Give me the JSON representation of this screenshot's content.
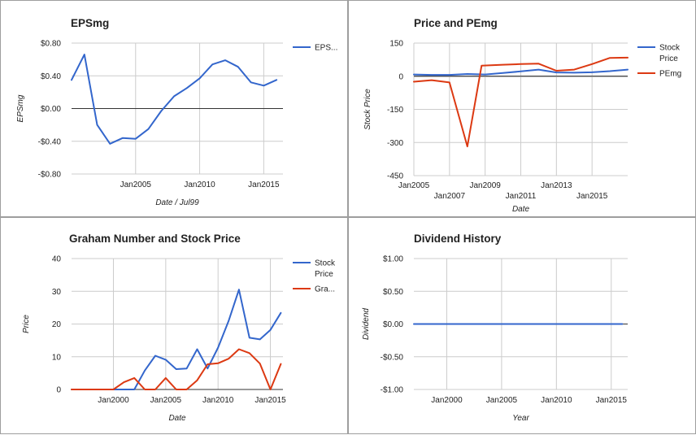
{
  "chart_data": [
    {
      "type": "line",
      "title": "EPSmg",
      "xlabel": "Date / Jul99",
      "ylabel": "EPSmg",
      "ylim": [
        -0.8,
        0.8
      ],
      "y_ticks": [
        "$0.80",
        "$0.40",
        "$0.00",
        "-$0.40",
        "-$0.80"
      ],
      "x_ticks": [
        "Jan2005",
        "Jan2010",
        "Jan2015"
      ],
      "legend": "right",
      "grid": true,
      "series": [
        {
          "name": "EPS...",
          "color": "#3366cc",
          "points": [
            [
              2000.0,
              0.35
            ],
            [
              2001.0,
              0.66
            ],
            [
              2002.0,
              -0.2
            ],
            [
              2003.0,
              -0.43
            ],
            [
              2004.0,
              -0.36
            ],
            [
              2005.0,
              -0.37
            ],
            [
              2006.0,
              -0.25
            ],
            [
              2007.0,
              -0.03
            ],
            [
              2008.0,
              0.15
            ],
            [
              2009.0,
              0.25
            ],
            [
              2010.0,
              0.37
            ],
            [
              2011.0,
              0.54
            ],
            [
              2012.0,
              0.59
            ],
            [
              2013.0,
              0.51
            ],
            [
              2014.0,
              0.32
            ],
            [
              2015.0,
              0.28
            ],
            [
              2016.0,
              0.35
            ]
          ]
        }
      ]
    },
    {
      "type": "line",
      "title": "Price and PEmg",
      "xlabel": "Date",
      "ylabel": "Stock Price",
      "ylim": [
        -450,
        150
      ],
      "y_ticks": [
        "150",
        "0",
        "-150",
        "-300",
        "-450"
      ],
      "x_ticks_upper": [
        "Jan2005",
        "Jan2009",
        "Jan2013"
      ],
      "x_ticks_lower": [
        "Jan2007",
        "Jan2011",
        "Jan2015"
      ],
      "legend": "right",
      "grid": true,
      "series": [
        {
          "name": "Stock Price",
          "color": "#3366cc",
          "points": [
            [
              2005.0,
              8
            ],
            [
              2006.0,
              6
            ],
            [
              2007.0,
              6
            ],
            [
              2008.0,
              10
            ],
            [
              2009.0,
              8
            ],
            [
              2010.0,
              15
            ],
            [
              2011.0,
              22
            ],
            [
              2012.0,
              30
            ],
            [
              2013.0,
              17
            ],
            [
              2014.0,
              16
            ],
            [
              2015.0,
              18
            ],
            [
              2016.0,
              23
            ],
            [
              2017.0,
              30
            ]
          ]
        },
        {
          "name": "PEmg",
          "color": "#dc3912",
          "points": [
            [
              2005.0,
              -25
            ],
            [
              2006.0,
              -18
            ],
            [
              2007.0,
              -28
            ],
            [
              2008.0,
              -318
            ],
            [
              2008.8,
              48
            ],
            [
              2010.0,
              52
            ],
            [
              2011.0,
              55
            ],
            [
              2012.0,
              57
            ],
            [
              2013.0,
              25
            ],
            [
              2014.0,
              30
            ],
            [
              2015.0,
              55
            ],
            [
              2016.0,
              83
            ],
            [
              2017.0,
              84
            ]
          ]
        }
      ]
    },
    {
      "type": "line",
      "title": "Graham Number and Stock Price",
      "xlabel": "Date",
      "ylabel": "Price",
      "ylim": [
        0,
        40
      ],
      "y_ticks": [
        "40",
        "30",
        "20",
        "10",
        "0"
      ],
      "x_ticks": [
        "Jan2000",
        "Jan2005",
        "Jan2010",
        "Jan2015"
      ],
      "legend": "right",
      "grid": true,
      "series": [
        {
          "name": "Stock Price",
          "color": "#3366cc",
          "points": [
            [
              1996.0,
              0
            ],
            [
              1997.0,
              0
            ],
            [
              1998.0,
              0
            ],
            [
              1999.0,
              0
            ],
            [
              2000.0,
              0
            ],
            [
              2001.0,
              0
            ],
            [
              2002.0,
              0
            ],
            [
              2003.0,
              5.8
            ],
            [
              2004.0,
              10.3
            ],
            [
              2005.0,
              9.1
            ],
            [
              2006.0,
              6.2
            ],
            [
              2007.0,
              6.4
            ],
            [
              2008.0,
              12.3
            ],
            [
              2009.0,
              6.4
            ],
            [
              2010.0,
              12.8
            ],
            [
              2011.0,
              20.9
            ],
            [
              2012.0,
              30.5
            ],
            [
              2013.0,
              15.8
            ],
            [
              2014.0,
              15.3
            ],
            [
              2015.0,
              18.2
            ],
            [
              2016.0,
              23.4
            ]
          ]
        },
        {
          "name": "Gra...",
          "color": "#dc3912",
          "points": [
            [
              1996.0,
              0
            ],
            [
              1997.0,
              0
            ],
            [
              1998.0,
              0
            ],
            [
              1999.0,
              0
            ],
            [
              2000.0,
              0
            ],
            [
              2001.0,
              2.2
            ],
            [
              2002.0,
              3.5
            ],
            [
              2003.0,
              0
            ],
            [
              2004.0,
              0
            ],
            [
              2005.0,
              3.5
            ],
            [
              2006.0,
              0
            ],
            [
              2007.0,
              0
            ],
            [
              2008.0,
              2.8
            ],
            [
              2009.0,
              7.7
            ],
            [
              2010.0,
              8.0
            ],
            [
              2011.0,
              9.4
            ],
            [
              2012.0,
              12.3
            ],
            [
              2013.0,
              11.1
            ],
            [
              2014.0,
              7.9
            ],
            [
              2015.0,
              0
            ],
            [
              2016.0,
              7.8
            ]
          ]
        }
      ]
    },
    {
      "type": "line",
      "title": "Dividend History",
      "xlabel": "Year",
      "ylabel": "Dividend",
      "ylim": [
        -1.0,
        1.0
      ],
      "y_ticks": [
        "$1.00",
        "$0.50",
        "$0.00",
        "-$0.50",
        "-$1.00"
      ],
      "x_ticks": [
        "Jan2000",
        "Jan2005",
        "Jan2010",
        "Jan2015"
      ],
      "grid": true,
      "series": [
        {
          "color": "#3366cc",
          "points": [
            [
              1997.0,
              0
            ],
            [
              2016.0,
              0
            ]
          ]
        }
      ]
    }
  ]
}
